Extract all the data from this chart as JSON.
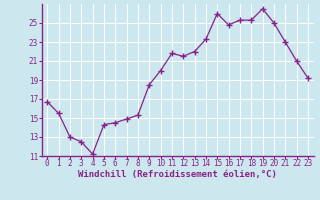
{
  "x": [
    0,
    1,
    2,
    3,
    4,
    5,
    6,
    7,
    8,
    9,
    10,
    11,
    12,
    13,
    14,
    15,
    16,
    17,
    18,
    19,
    20,
    21,
    22,
    23
  ],
  "y": [
    16.7,
    15.5,
    13.0,
    12.5,
    11.2,
    14.3,
    14.5,
    14.9,
    15.3,
    18.5,
    20.0,
    21.8,
    21.5,
    22.0,
    23.3,
    26.0,
    24.8,
    25.3,
    25.3,
    26.5,
    25.0,
    23.0,
    21.0,
    19.2
  ],
  "line_color": "#882288",
  "marker": "+",
  "bg_color": "#cce8ee",
  "grid_color": "#ffffff",
  "xlabel": "Windchill (Refroidissement éolien,°C)",
  "ylim": [
    11,
    27
  ],
  "xlim": [
    -0.5,
    23.5
  ],
  "yticks": [
    11,
    13,
    15,
    17,
    19,
    21,
    23,
    25
  ],
  "xtick_labels": [
    "0",
    "1",
    "2",
    "3",
    "4",
    "5",
    "6",
    "7",
    "8",
    "9",
    "10",
    "11",
    "12",
    "13",
    "14",
    "15",
    "16",
    "17",
    "18",
    "19",
    "20",
    "21",
    "22",
    "23"
  ],
  "tick_fontsize": 5.5,
  "label_fontsize": 6.5
}
